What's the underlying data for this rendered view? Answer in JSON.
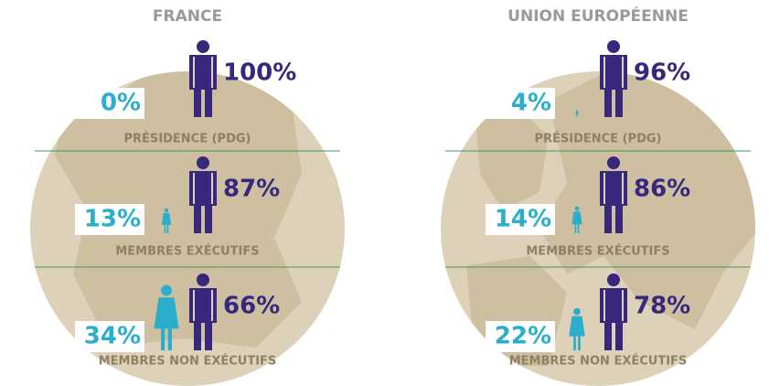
{
  "panels": [
    {
      "title": "FRANCE",
      "rows": [
        {
          "label": "PRÉSIDENCE (PDG)",
          "values": [
            0,
            100
          ],
          "value_labels": [
            "0%",
            "100%"
          ]
        },
        {
          "label": "MEMBRES EXÉCUTIFS",
          "values": [
            13,
            87
          ],
          "value_labels": [
            "13%",
            "87%"
          ]
        },
        {
          "label": "MEMBRES NON EXÉCUTIFS",
          "values": [
            34,
            66
          ],
          "value_labels": [
            "34%",
            "66%"
          ]
        }
      ]
    },
    {
      "title": "UNION EUROPÉENNE",
      "rows": [
        {
          "label": "PRÉSIDENCE (PDG)",
          "values": [
            4,
            96
          ],
          "value_labels": [
            "4%",
            "96%"
          ]
        },
        {
          "label": "MEMBRES EXÉCUTIFS",
          "values": [
            14,
            86
          ],
          "value_labels": [
            "14%",
            "86%"
          ]
        },
        {
          "label": "MEMBRES NON EXÉCUTIFS",
          "values": [
            22,
            78
          ],
          "value_labels": [
            "22%",
            "78%"
          ]
        }
      ]
    }
  ]
}
